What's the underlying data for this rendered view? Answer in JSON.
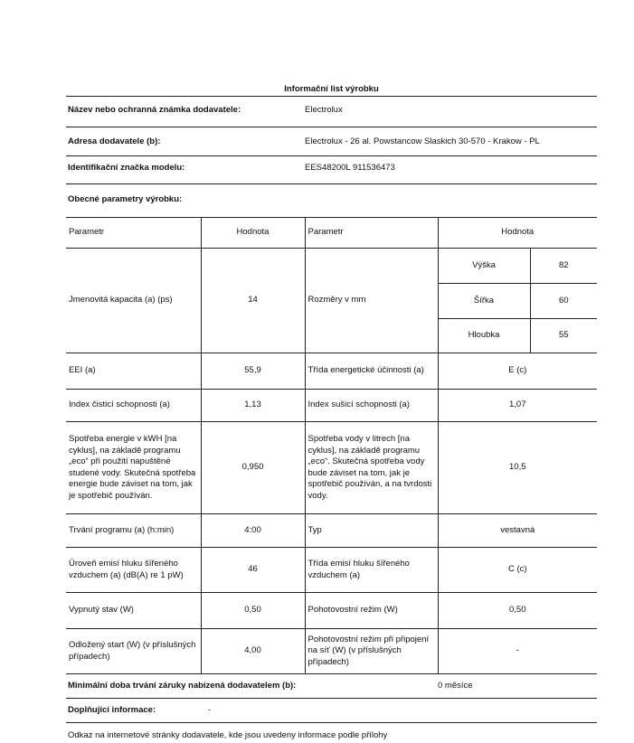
{
  "title": "Informační list výrobku",
  "supplier": {
    "label": "Název nebo ochranná známka dodavatele:",
    "value": "Electrolux"
  },
  "address": {
    "label": "Adresa dodavatele (b):",
    "value": "Electrolux - 26 al. Powstancow Slaskich 30-570 - Krakow - PL"
  },
  "model": {
    "label": "Identifikační značka modelu:",
    "value": "EES48200L 911536473"
  },
  "general": "Obecné parametry výrobku:",
  "header": {
    "p1": "Parametr",
    "h1": "Hodnota",
    "p2": "Parametr",
    "h2": "Hodnota"
  },
  "rows": {
    "capacity": {
      "label": "Jmenovitá kapacita (a) (ps)",
      "value": "14",
      "label2": "Rozměry v mm",
      "dims": [
        {
          "k": "Výška",
          "v": "82"
        },
        {
          "k": "Šířka",
          "v": "60"
        },
        {
          "k": "Hloubka",
          "v": "55"
        }
      ]
    },
    "eei": {
      "label": "EEI (a)",
      "value": "55,9",
      "label2": "Třída energetické účinnosti (a)",
      "value2": "E (c)"
    },
    "index": {
      "label": "Index čisticí schopnosti (a)",
      "value": "1,13",
      "label2": "Index sušicí schopnosti (a)",
      "value2": "1,07"
    },
    "energy": {
      "label": "Spotřeba energie v kWH [na cyklus], na základě programu „eco“ při použití napuštěné studené vody. Skutečná spotřeba energie bude záviset na tom, jak je spotřebič používán.",
      "value": "0,950",
      "label2": "Spotřeba vody v litrech [na cyklus], na základě programu „eco“. Skutečná spotřeba vody bude záviset na tom, jak je spotřebič používán, a na tvrdosti vody.",
      "value2": "10,5"
    },
    "duration": {
      "label": "Trvání programu (a) (h:min)",
      "value": "4:00",
      "label2": "Typ",
      "value2": "vestavná"
    },
    "noise": {
      "label": "Úroveň emisí hluku šířeného vzduchem (a) (dB(A) re 1 pW)",
      "value": "46",
      "label2": "Třída emisí hluku šířeného vzduchem (a)",
      "value2": "C (c)"
    },
    "off": {
      "label": "Vypnutý stav (W)",
      "value": "0,50",
      "label2": "Pohotovostní režim (W)",
      "value2": "0,50"
    },
    "delay": {
      "label": "Odložený start (W) (v příslušných případech)",
      "value": "4,00",
      "label2": "Pohotovostní režim při připojení na síť (W) (v příslušných případech)",
      "value2": "-"
    }
  },
  "warranty": {
    "label": "Minimální doba trvání záruky nabízená dodavatelem (b):",
    "value": "0 měsíce"
  },
  "additional": {
    "label": "Doplňující informace:",
    "value": "-"
  },
  "link_text": "Odkaz na internetové stránky dodavatele, kde jsou uvedeny informace podle přílohy"
}
